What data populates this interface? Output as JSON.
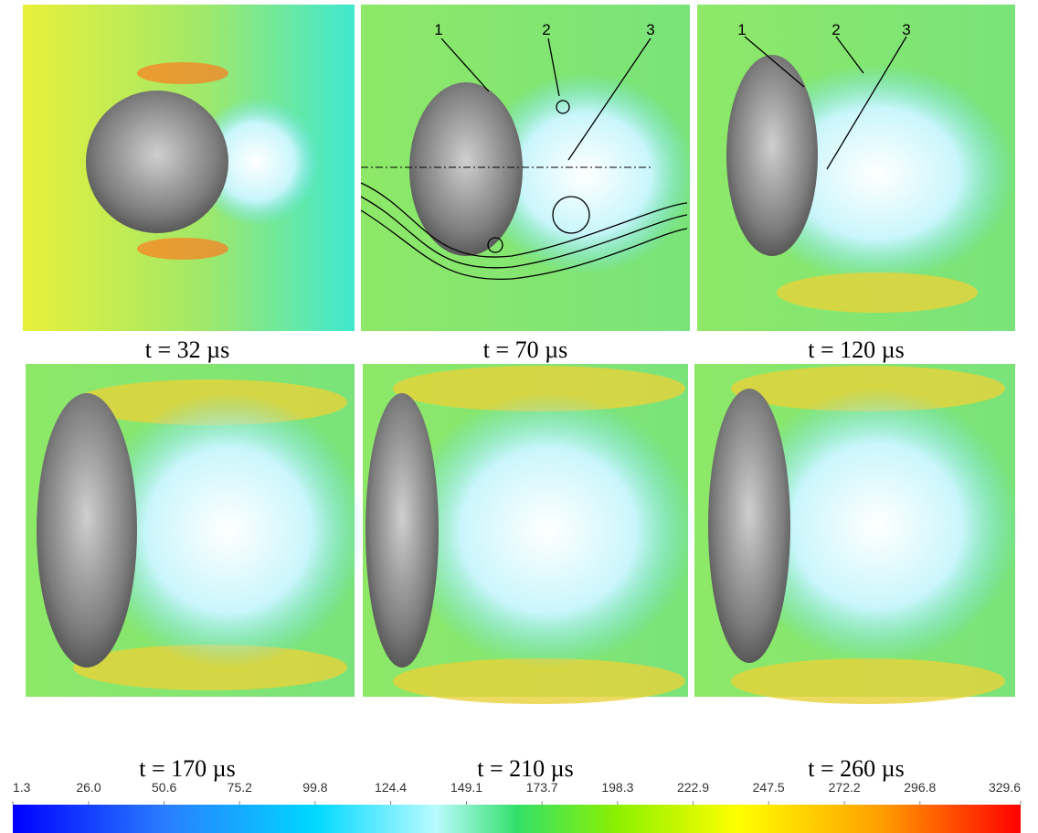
{
  "panels": [
    {
      "label": "t = 32 µs"
    },
    {
      "label": "t = 70 µs",
      "markers": [
        "1",
        "2",
        "3"
      ]
    },
    {
      "label": "t = 120 µs",
      "markers": [
        "1",
        "2",
        "3"
      ]
    },
    {
      "label": "t = 170 µs"
    },
    {
      "label": "t = 210 µs"
    },
    {
      "label": "t = 260 µs"
    }
  ],
  "colorbar": {
    "ticks": [
      1.3,
      {
        "value": 26,
        "label": "26.0"
      },
      50.6,
      75.2,
      99.8,
      124.4,
      149.1,
      173.7,
      198.3,
      222.9,
      247.5,
      272.2,
      296.8,
      329.6
    ]
  }
}
